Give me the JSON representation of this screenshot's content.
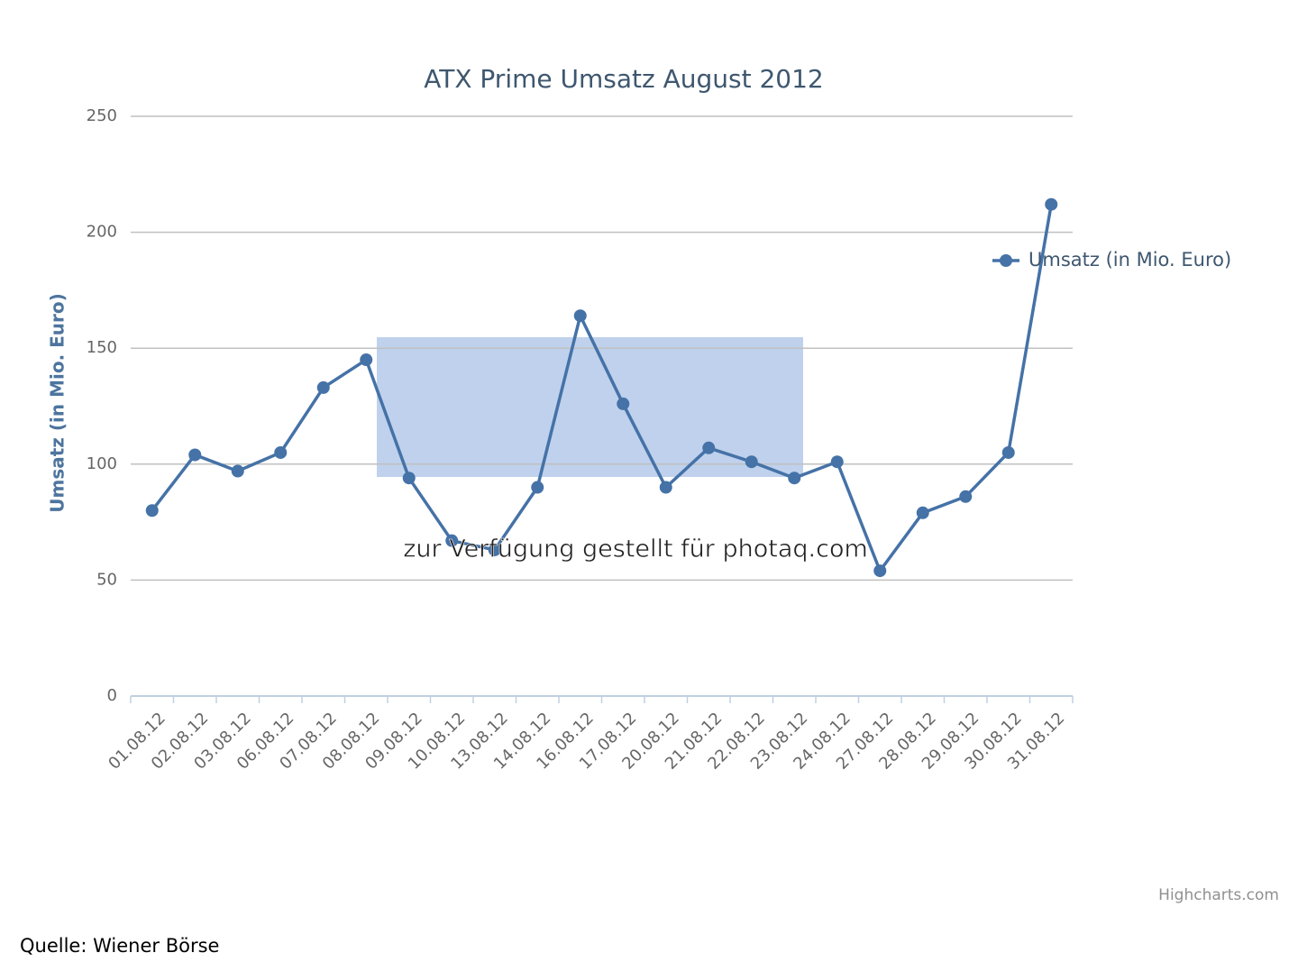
{
  "chart_data": {
    "type": "line",
    "title": "ATX Prime Umsatz August 2012",
    "y_label": "Umsatz (in Mio. Euro)",
    "categories": [
      "01.08.12",
      "02.08.12",
      "03.08.12",
      "06.08.12",
      "07.08.12",
      "08.08.12",
      "09.08.12",
      "10.08.12",
      "13.08.12",
      "14.08.12",
      "16.08.12",
      "17.08.12",
      "20.08.12",
      "21.08.12",
      "22.08.12",
      "23.08.12",
      "24.08.12",
      "27.08.12",
      "28.08.12",
      "29.08.12",
      "30.08.12",
      "31.08.12"
    ],
    "series": [
      {
        "name": "Umsatz (in Mio. Euro)",
        "color": "#4572a7",
        "values": [
          80,
          104,
          97,
          105,
          133,
          145,
          94,
          67,
          63,
          90,
          164,
          126,
          90,
          107,
          101,
          94,
          101,
          54,
          79,
          86,
          105,
          212
        ]
      }
    ],
    "ylim": [
      0,
      250
    ],
    "yticks": [
      0,
      50,
      100,
      150,
      200,
      250
    ],
    "grid": true,
    "legend": "right",
    "watermark": "zur Verfügung gestellt für photaq.com",
    "credit": "Highcharts.com",
    "source": "Quelle: Wiener Börse"
  }
}
